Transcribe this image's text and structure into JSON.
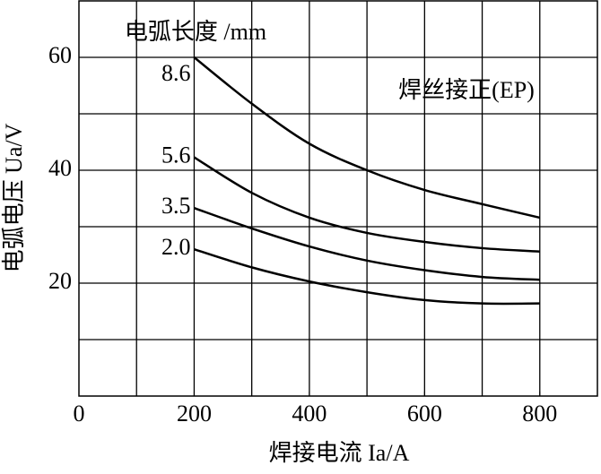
{
  "chart_data": {
    "type": "line",
    "legend_title": "电弧长度 /mm",
    "annotation": "焊丝接正(EP)",
    "xlabel": "焊接电流 Ia/A",
    "ylabel": "电弧电压 Ua/V",
    "x": [
      200,
      300,
      400,
      500,
      600,
      700,
      800
    ],
    "series": [
      {
        "name": "8.6",
        "color": "#000000",
        "values": [
          60,
          51.8,
          44.7,
          40,
          36.5,
          34,
          31.6
        ]
      },
      {
        "name": "5.6",
        "color": "#000000",
        "values": [
          42.3,
          36,
          31.6,
          28.9,
          27.3,
          26.2,
          25.6
        ]
      },
      {
        "name": "3.5",
        "color": "#000000",
        "values": [
          33.3,
          29.7,
          26.5,
          24,
          22.3,
          21.1,
          20.6
        ]
      },
      {
        "name": "2.0",
        "color": "#000000",
        "values": [
          26,
          22.8,
          20.3,
          18.4,
          17,
          16.4,
          16.4
        ]
      }
    ],
    "xlim": [
      0,
      900
    ],
    "xticks": [
      0,
      200,
      400,
      600,
      800
    ],
    "ylim": [
      0,
      70
    ],
    "yticks": [
      20,
      40,
      60
    ],
    "xgrid": [
      100,
      200,
      300,
      400,
      500,
      600,
      700,
      800
    ],
    "ygrid": [
      10,
      20,
      30,
      40,
      50,
      60
    ],
    "grid": true
  }
}
